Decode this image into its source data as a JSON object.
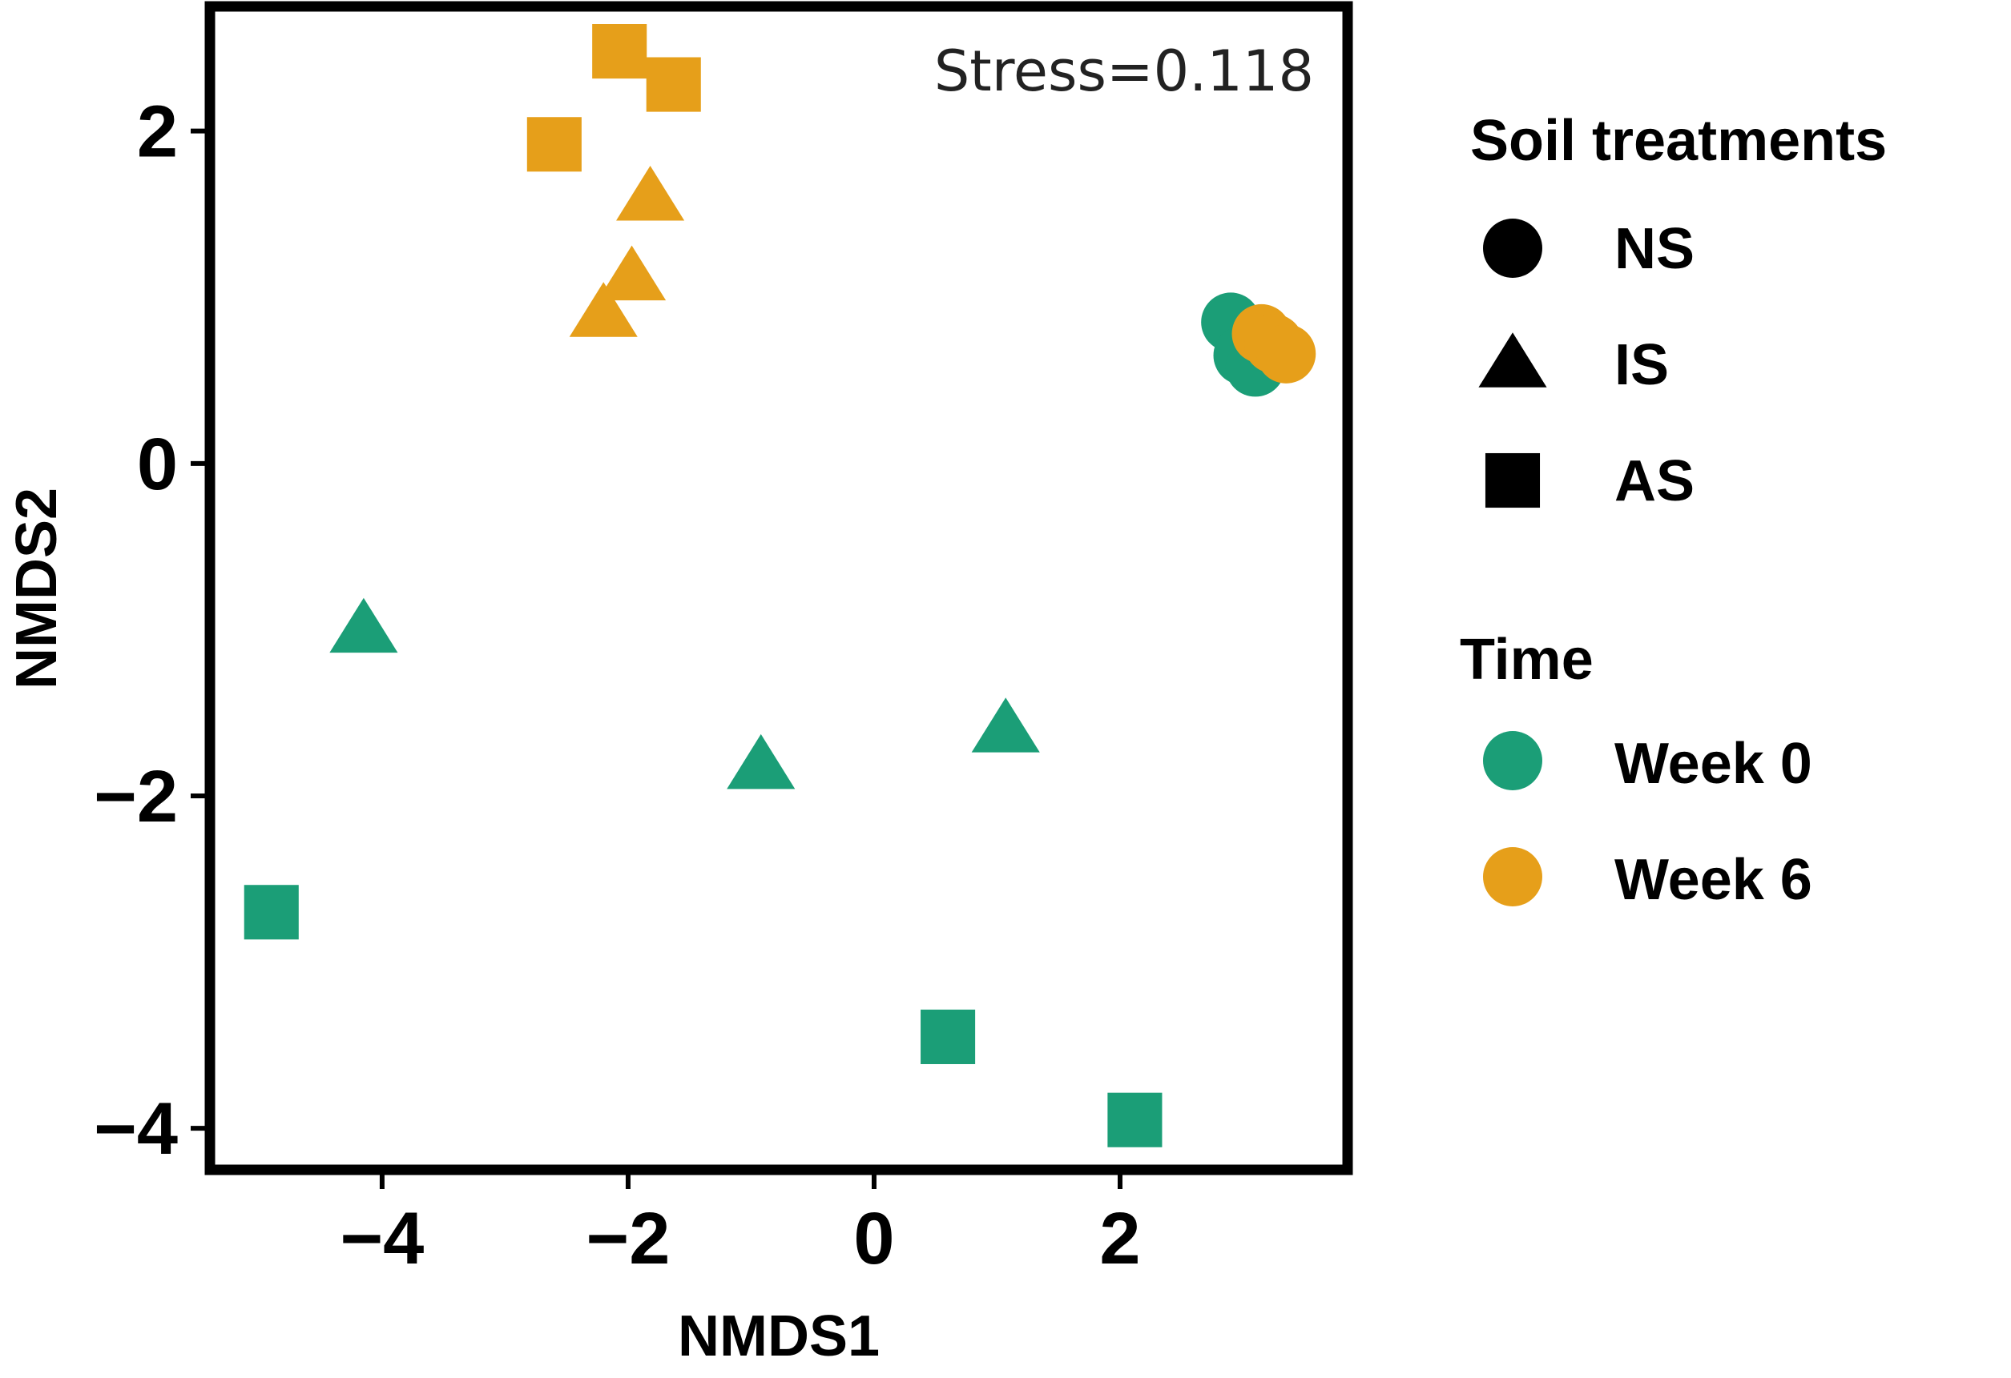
{
  "chart_data": {
    "type": "scatter",
    "title": "",
    "xlabel": "NMDS1",
    "ylabel": "NMDS2",
    "xlim": [
      -5.4,
      3.85
    ],
    "ylim": [
      -4.25,
      2.75
    ],
    "xticks": [
      -4,
      -2,
      0,
      2
    ],
    "yticks": [
      2,
      0,
      -2,
      -4
    ],
    "xtick_labels": [
      "−4",
      "−2",
      "0",
      "2"
    ],
    "ytick_labels": [
      "2",
      "0",
      "−2",
      "−4"
    ],
    "annotation": "Stress=0.118",
    "grid": false,
    "legend": {
      "placement": "right",
      "shape_title": "Soil treatments",
      "shapes": [
        {
          "label": "NS",
          "shape": "circle"
        },
        {
          "label": "IS",
          "shape": "triangle"
        },
        {
          "label": "AS",
          "shape": "square"
        }
      ],
      "color_title": "Time",
      "colors": [
        {
          "label": "Week 0",
          "color": "#1b9e77"
        },
        {
          "label": "Week 6",
          "color": "#e69f1a"
        }
      ]
    },
    "series": [
      {
        "name": "Week 0",
        "color": "#1b9e77",
        "points": [
          {
            "x": 2.9,
            "y": 0.85,
            "shape": "circle"
          },
          {
            "x": 3.0,
            "y": 0.65,
            "shape": "circle"
          },
          {
            "x": 3.1,
            "y": 0.58,
            "shape": "circle"
          },
          {
            "x": -4.15,
            "y": -1.0,
            "shape": "triangle"
          },
          {
            "x": -0.92,
            "y": -1.82,
            "shape": "triangle"
          },
          {
            "x": 1.07,
            "y": -1.6,
            "shape": "triangle"
          },
          {
            "x": -4.9,
            "y": -2.7,
            "shape": "square"
          },
          {
            "x": 0.6,
            "y": -3.45,
            "shape": "square"
          },
          {
            "x": 2.12,
            "y": -3.95,
            "shape": "square"
          }
        ]
      },
      {
        "name": "Week 6",
        "color": "#e69f1a",
        "points": [
          {
            "x": 3.15,
            "y": 0.78,
            "shape": "circle"
          },
          {
            "x": 3.25,
            "y": 0.72,
            "shape": "circle"
          },
          {
            "x": 3.35,
            "y": 0.66,
            "shape": "circle"
          },
          {
            "x": -1.82,
            "y": 1.6,
            "shape": "triangle"
          },
          {
            "x": -1.97,
            "y": 1.12,
            "shape": "triangle"
          },
          {
            "x": -2.2,
            "y": 0.9,
            "shape": "triangle"
          },
          {
            "x": -2.6,
            "y": 1.92,
            "shape": "square"
          },
          {
            "x": -2.07,
            "y": 2.48,
            "shape": "square"
          },
          {
            "x": -1.63,
            "y": 2.28,
            "shape": "square"
          }
        ]
      }
    ]
  }
}
